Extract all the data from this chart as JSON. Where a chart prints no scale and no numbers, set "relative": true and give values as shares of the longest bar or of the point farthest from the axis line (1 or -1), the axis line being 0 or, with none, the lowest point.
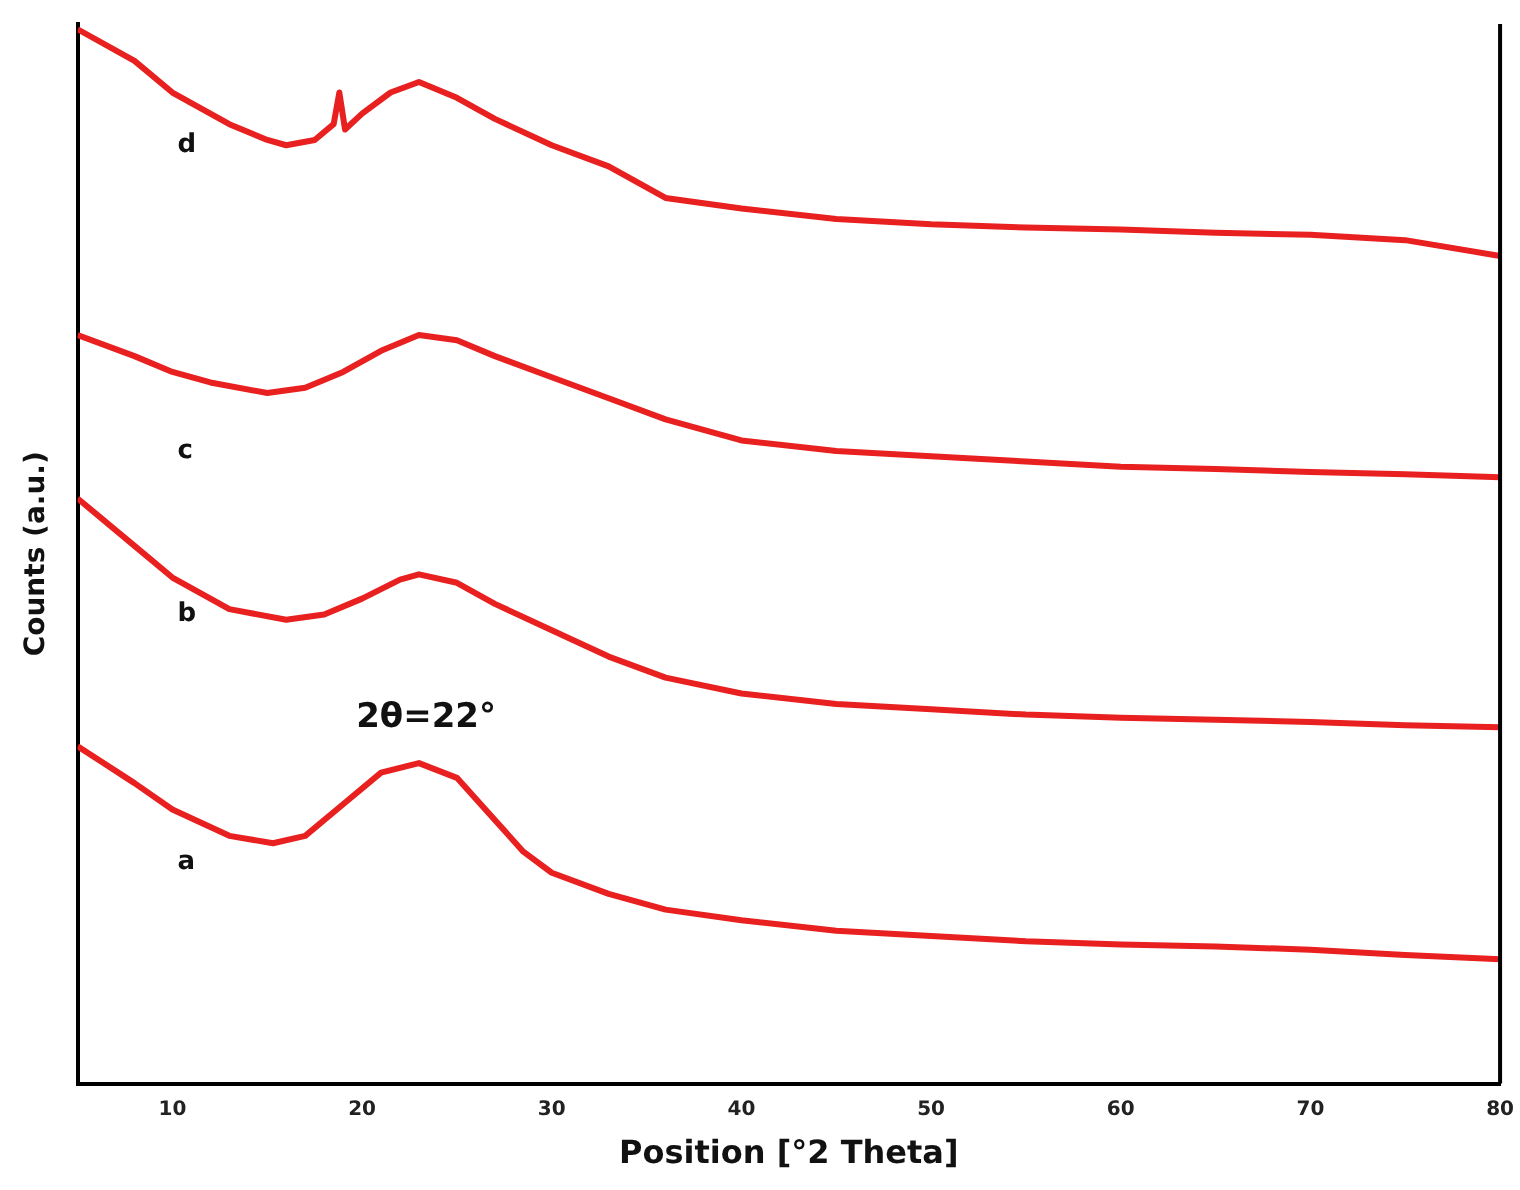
{
  "chart_data": {
    "type": "line",
    "relative": true,
    "xlabel": "Position [°2 Theta]",
    "ylabel": "Counts (a.u.)",
    "xlim": [
      5,
      80
    ],
    "xticks": [
      10,
      20,
      30,
      40,
      50,
      60,
      70,
      80
    ],
    "grid": false,
    "legend": false,
    "marker": "none",
    "line_style": "solid",
    "annotations": [
      "2θ=22°"
    ],
    "series": [
      {
        "name": "a",
        "color": "#e8201f",
        "x": [
          5,
          8,
          10,
          13,
          15.3,
          17,
          19,
          21,
          23,
          25,
          27,
          28.5,
          30,
          33,
          36,
          40,
          45,
          50,
          55,
          60,
          65,
          70,
          75,
          80
        ],
        "values": [
          0.32,
          0.285,
          0.26,
          0.235,
          0.228,
          0.235,
          0.265,
          0.295,
          0.304,
          0.29,
          0.25,
          0.22,
          0.2,
          0.18,
          0.165,
          0.155,
          0.145,
          0.14,
          0.135,
          0.132,
          0.13,
          0.127,
          0.122,
          0.118
        ]
      },
      {
        "name": "b",
        "color": "#e8201f",
        "x": [
          5,
          8,
          10,
          13,
          16,
          18,
          20,
          22,
          23,
          25,
          27,
          30,
          33,
          36,
          40,
          45,
          50,
          55,
          60,
          65,
          70,
          75,
          80
        ],
        "values": [
          0.555,
          0.51,
          0.48,
          0.45,
          0.44,
          0.445,
          0.46,
          0.478,
          0.483,
          0.475,
          0.455,
          0.43,
          0.405,
          0.385,
          0.37,
          0.36,
          0.355,
          0.35,
          0.347,
          0.345,
          0.343,
          0.34,
          0.338
        ]
      },
      {
        "name": "c",
        "color": "#e8201f",
        "x": [
          5,
          8,
          10,
          12,
          15,
          17,
          19,
          21,
          23,
          25,
          27,
          30,
          33,
          36,
          40,
          45,
          50,
          55,
          60,
          65,
          70,
          75,
          80
        ],
        "values": [
          0.71,
          0.69,
          0.675,
          0.665,
          0.655,
          0.66,
          0.675,
          0.695,
          0.71,
          0.705,
          0.69,
          0.67,
          0.65,
          0.63,
          0.61,
          0.6,
          0.595,
          0.59,
          0.585,
          0.583,
          0.58,
          0.578,
          0.575
        ]
      },
      {
        "name": "d",
        "color": "#e8201f",
        "x": [
          5,
          8,
          10,
          13,
          15,
          16,
          17.5,
          18.5,
          18.8,
          19.1,
          20,
          21.5,
          23,
          25,
          27,
          30,
          33,
          36,
          40,
          45,
          50,
          55,
          60,
          65,
          70,
          75,
          80
        ],
        "values": [
          1,
          0.97,
          0.94,
          0.91,
          0.895,
          0.89,
          0.895,
          0.91,
          0.94,
          0.905,
          0.92,
          0.94,
          0.95,
          0.935,
          0.915,
          0.89,
          0.87,
          0.84,
          0.83,
          0.82,
          0.815,
          0.812,
          0.81,
          0.807,
          0.805,
          0.8,
          0.785
        ]
      }
    ]
  }
}
